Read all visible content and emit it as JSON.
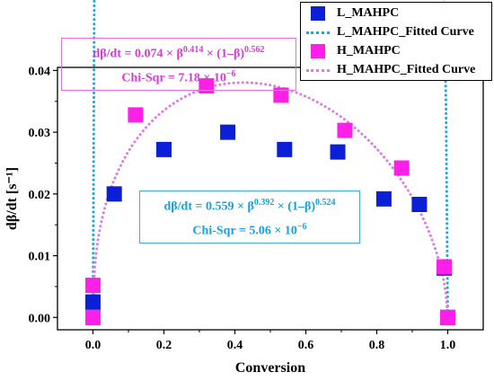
{
  "chart_data": {
    "type": "scatter",
    "xlabel": "Conversion",
    "ylabel": "dβ/dt [s⁻¹]",
    "xlim": [
      -0.1,
      1.1
    ],
    "ylim": [
      -0.002,
      0.0405
    ],
    "xticks": [
      0.0,
      0.2,
      0.4,
      0.6,
      0.8,
      1.0
    ],
    "xtick_labels": [
      "0.0",
      "0.2",
      "0.4",
      "0.6",
      "0.8",
      "1.0"
    ],
    "yticks": [
      0.0,
      0.01,
      0.02,
      0.03,
      0.04
    ],
    "ytick_labels": [
      "0.00",
      "0.01",
      "0.02",
      "0.03",
      "0.04"
    ],
    "legend_position": "top-right",
    "series": [
      {
        "name": "L_MAHPC",
        "kind": "scatter",
        "color": "#0a1fd6",
        "x": [
          0.0,
          0.0,
          0.06,
          0.2,
          0.38,
          0.54,
          0.69,
          0.82,
          0.92,
          0.99,
          1.0
        ],
        "y": [
          0.0,
          0.0025,
          0.02,
          0.0272,
          0.03,
          0.0272,
          0.0268,
          0.0192,
          0.0183,
          0.008,
          0.0
        ]
      },
      {
        "name": "L_MAHPC_Fitted Curve",
        "kind": "fit",
        "color": "#19a8e0",
        "k": 0.559,
        "m": 0.392,
        "n": 0.524
      },
      {
        "name": "H_MAHPC",
        "kind": "scatter",
        "color": "#ff1fe8",
        "x": [
          0.0,
          0.0,
          0.12,
          0.32,
          0.53,
          0.71,
          0.87,
          0.99,
          1.0
        ],
        "y": [
          0.0,
          0.0052,
          0.0328,
          0.0375,
          0.036,
          0.0303,
          0.0242,
          0.0082,
          0.0
        ],
        "_note": ""
      },
      {
        "name": "H_MAHPC_Fitted Curve",
        "kind": "fit",
        "color": "#e07ae0",
        "k": 0.074,
        "m": 0.414,
        "n": 0.562
      }
    ]
  },
  "equations": {
    "h": {
      "prefix": "dβ/dt = 0.074 × β",
      "exp1": "0.414",
      "mid": " × (1–β)",
      "exp2": "0.562",
      "chi_prefix": "Chi-Sqr = 7.18 × 10",
      "chi_exp": "−6"
    },
    "l": {
      "prefix": "dβ/dt = 0.559 × β",
      "exp1": "0.392",
      "mid": " × (1–β)",
      "exp2": "0.524",
      "chi_prefix": "Chi-Sqr = 5.06 × 10",
      "chi_exp": "−6"
    }
  },
  "legend": {
    "items": [
      {
        "label": "L_MAHPC",
        "color": "#0a1fd6",
        "symbol": "square"
      },
      {
        "label": "L_MAHPC_Fitted Curve",
        "color": "#19a8e0",
        "symbol": "dot-line"
      },
      {
        "label": "H_MAHPC",
        "color": "#ff1fe8",
        "symbol": "square"
      },
      {
        "label": "H_MAHPC_Fitted Curve",
        "color": "#e07ae0",
        "symbol": "dot-line"
      }
    ]
  }
}
